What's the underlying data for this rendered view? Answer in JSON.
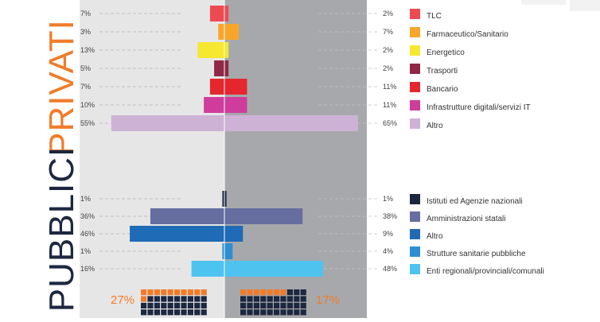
{
  "chart_data": {
    "type": "bar",
    "colors": {
      "accent": "#f07c2a",
      "dark": "#1c2740",
      "panel_left": "#e6e6e6",
      "panel_right": "#a7a8ab"
    },
    "groups": [
      {
        "name": "PRIVATI",
        "title_color": "#f07c2a",
        "categories": [
          {
            "label": "TLC",
            "left": 7,
            "right": 2,
            "left_text": "7%",
            "right_text": "2%",
            "color": "#ee4a52"
          },
          {
            "label": "Farmaceutico/Sanitario",
            "left": 3,
            "right": 7,
            "left_text": "3%",
            "right_text": "7%",
            "color": "#f7a62b"
          },
          {
            "label": "Energetico",
            "left": 13,
            "right": 2,
            "left_text": "13%",
            "right_text": "2%",
            "color": "#f5e82f"
          },
          {
            "label": "Trasporti",
            "left": 5,
            "right": 2,
            "left_text": "5%",
            "right_text": "2%",
            "color": "#8e2846"
          },
          {
            "label": "Bancario",
            "left": 7,
            "right": 11,
            "left_text": "7%",
            "right_text": "11%",
            "color": "#e5262e"
          },
          {
            "label": "Infrastrutture digitali/servizi IT",
            "left": 10,
            "right": 11,
            "left_text": "10%",
            "right_text": "11%",
            "color": "#cf3c9c"
          },
          {
            "label": "Altro",
            "left": 55,
            "right": 65,
            "left_text": "55%",
            "right_text": "65%",
            "color": "#ceb2d6"
          }
        ]
      },
      {
        "name": "PUBBLICI",
        "title_color": "#1c2740",
        "categories": [
          {
            "label": "Istituti ed Agenzie nazionali",
            "left": 1,
            "right": 1,
            "left_text": "1%",
            "right_text": "1%",
            "color": "#1c2740"
          },
          {
            "label": "Amministrazioni statali",
            "left": 36,
            "right": 38,
            "left_text": "36%",
            "right_text": "38%",
            "color": "#656e9f"
          },
          {
            "label": "Altro",
            "left": 46,
            "right": 9,
            "left_text": "46%",
            "right_text": "9%",
            "color": "#1f6bb5"
          },
          {
            "label": "Strutture sanitarie pubbliche",
            "left": 1,
            "right": 4,
            "left_text": "1%",
            "right_text": "4%",
            "color": "#2d8fd0"
          },
          {
            "label": "Enti regionali/provinciali/comunali",
            "left": 16,
            "right": 48,
            "left_text": "16%",
            "right_text": "48%",
            "color": "#4fc3ef"
          }
        ]
      }
    ],
    "summary": {
      "left_value": 27,
      "left_text": "27%",
      "right_value": 17,
      "right_text": "17%"
    },
    "xlim": [
      0,
      65
    ]
  }
}
